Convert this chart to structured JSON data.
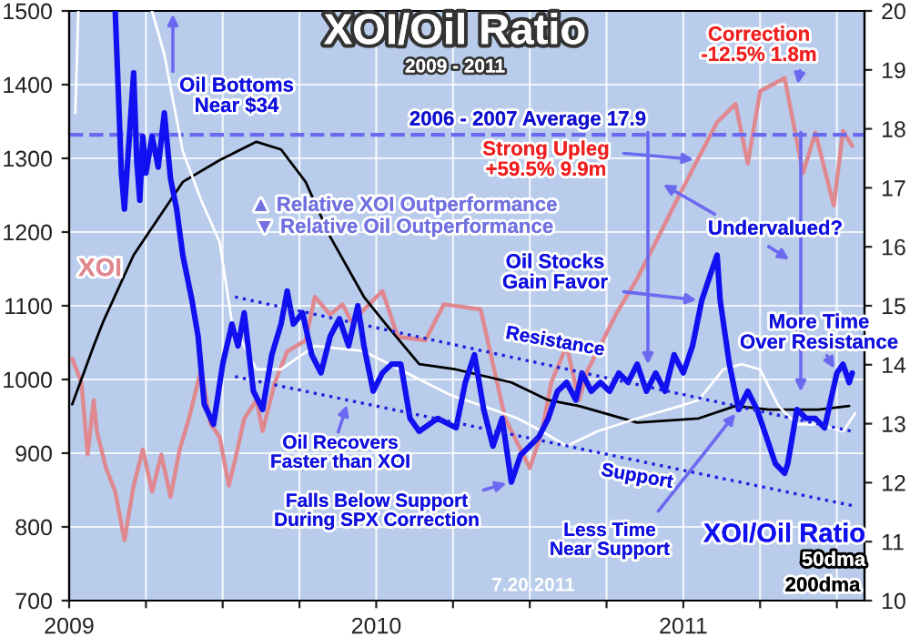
{
  "chart_data": {
    "type": "line",
    "title": "XOI/Oil Ratio",
    "subtitle": "2009 - 2011",
    "xlim": [
      2009,
      2011.59
    ],
    "xticks": [
      2009,
      {
        "value": 2009.25,
        "label": null
      },
      {
        "value": 2009.5,
        "label": null
      },
      {
        "value": 2009.75,
        "label": null
      },
      2010,
      {
        "value": 2010.25,
        "label": null
      },
      {
        "value": 2010.5,
        "label": null
      },
      {
        "value": 2010.75,
        "label": null
      },
      2011,
      {
        "value": 2011.25,
        "label": null
      },
      {
        "value": 2011.5,
        "label": null
      }
    ],
    "ylim": [
      700,
      1500
    ],
    "yticks": [
      700,
      800,
      900,
      1000,
      1100,
      1200,
      1300,
      1400,
      1500
    ],
    "y2lim": [
      10,
      20
    ],
    "y2ticks": [
      10,
      11,
      12,
      13,
      14,
      15,
      16,
      17,
      18,
      19,
      20
    ],
    "grid": true,
    "series": [
      {
        "name": "XOI",
        "color": "#e08890",
        "axis": "y",
        "x": [
          2009.01,
          2009.04,
          2009.06,
          2009.08,
          2009.09,
          2009.12,
          2009.15,
          2009.18,
          2009.21,
          2009.24,
          2009.27,
          2009.3,
          2009.33,
          2009.36,
          2009.39,
          2009.43,
          2009.46,
          2009.49,
          2009.52,
          2009.54,
          2009.57,
          2009.61,
          2009.63,
          2009.67,
          2009.71,
          2009.77,
          2009.8,
          2009.85,
          2009.89,
          2009.92,
          2010.02,
          2010.07,
          2010.16,
          2010.22,
          2010.34,
          2010.42,
          2010.5,
          2010.54,
          2010.57,
          2010.62,
          2010.66,
          2010.69,
          2010.73,
          2010.78,
          2010.85,
          2010.91,
          2010.97,
          2011.03,
          2011.07,
          2011.11,
          2011.17,
          2011.21,
          2011.25,
          2011.33,
          2011.39,
          2011.43,
          2011.49,
          2011.52,
          2011.55
        ],
        "values": [
          1028,
          996,
          898,
          972,
          930,
          880,
          848,
          782,
          856,
          905,
          848,
          898,
          841,
          905,
          947,
          1014,
          940,
          922,
          856,
          890,
          947,
          972,
          930,
          996,
          1038,
          1053,
          1112,
          1088,
          1102,
          1078,
          1120,
          1058,
          1053,
          1102,
          1095,
          947,
          880,
          930,
          996,
          1046,
          972,
          1014,
          1046,
          1088,
          1137,
          1186,
          1236,
          1285,
          1317,
          1349,
          1374,
          1293,
          1391,
          1409,
          1280,
          1335,
          1236,
          1337,
          1317
        ]
      },
      {
        "name": "200dma",
        "color": "#000000",
        "axis": "y2",
        "x": [
          2009.01,
          2009.08,
          2009.11,
          2009.21,
          2009.37,
          2009.49,
          2009.61,
          2009.69,
          2009.77,
          2009.85,
          2009.96,
          2010.04,
          2010.14,
          2010.26,
          2010.44,
          2010.56,
          2010.66,
          2010.85,
          2011.05,
          2011.17,
          2011.28,
          2011.44,
          2011.54
        ],
        "values": [
          13.33,
          14.32,
          14.72,
          15.86,
          17.1,
          17.47,
          17.78,
          17.65,
          17.1,
          16.17,
          15.15,
          14.63,
          14.01,
          13.92,
          13.7,
          13.4,
          13.3,
          13.02,
          13.09,
          13.3,
          13.24,
          13.24,
          13.3
        ]
      },
      {
        "name": "50dma",
        "color": "#ffffff",
        "axis": "y2",
        "x": [
          2009.02,
          2009.03,
          2009.15,
          2009.27,
          2009.31,
          2009.37,
          2009.43,
          2009.49,
          2009.53,
          2009.61,
          2009.69,
          2009.8,
          2009.96,
          2010.16,
          2010.24,
          2010.38,
          2010.46,
          2010.54,
          2010.62,
          2010.72,
          2010.85,
          2010.99,
          2011.05,
          2011.13,
          2011.19,
          2011.25,
          2011.31,
          2011.37,
          2011.44,
          2011.52,
          2011.56
        ],
        "values": [
          18.27,
          20.0,
          null,
          20.0,
          19.26,
          17.62,
          16.79,
          16.08,
          14.72,
          13.92,
          13.92,
          14.32,
          14.23,
          13.7,
          13.49,
          13.24,
          13.09,
          12.87,
          12.62,
          12.87,
          13.09,
          13.3,
          13.4,
          13.92,
          14.01,
          13.92,
          13.3,
          12.99,
          12.99,
          12.87,
          13.18
        ]
      },
      {
        "name": "XOI/Oil Ratio",
        "color": "#1010f0",
        "axis": "y2",
        "x": [
          2009.15,
          2009.16,
          2009.17,
          2009.18,
          2009.2,
          2009.21,
          2009.22,
          2009.23,
          2009.24,
          2009.25,
          2009.27,
          2009.29,
          2009.31,
          2009.33,
          2009.35,
          2009.37,
          2009.4,
          2009.42,
          2009.44,
          2009.47,
          2009.5,
          2009.53,
          2009.55,
          2009.57,
          2009.6,
          2009.63,
          2009.66,
          2009.69,
          2009.71,
          2009.73,
          2009.76,
          2009.79,
          2009.82,
          2009.85,
          2009.88,
          2009.91,
          2009.94,
          2009.96,
          2009.99,
          2010.02,
          2010.05,
          2010.08,
          2010.11,
          2010.14,
          2010.2,
          2010.26,
          2010.29,
          2010.32,
          2010.35,
          2010.38,
          2010.41,
          2010.44,
          2010.47,
          2010.5,
          2010.53,
          2010.56,
          2010.59,
          2010.62,
          2010.65,
          2010.67,
          2010.7,
          2010.73,
          2010.76,
          2010.79,
          2010.82,
          2010.85,
          2010.88,
          2010.91,
          2010.94,
          2010.97,
          2011.0,
          2011.03,
          2011.06,
          2011.09,
          2011.11,
          2011.12,
          2011.15,
          2011.18,
          2011.21,
          2011.24,
          2011.27,
          2011.3,
          2011.33,
          2011.34,
          2011.37,
          2011.4,
          2011.43,
          2011.46,
          2011.5,
          2011.52,
          2011.54,
          2011.55
        ],
        "values": [
          20.0,
          18.64,
          17.25,
          16.64,
          18.18,
          18.95,
          17.47,
          16.79,
          17.87,
          17.25,
          17.87,
          17.35,
          18.27,
          17.16,
          16.64,
          15.86,
          15.09,
          14.48,
          13.33,
          12.99,
          14.01,
          14.69,
          14.32,
          14.88,
          13.55,
          13.24,
          14.17,
          14.69,
          15.25,
          14.69,
          14.88,
          14.17,
          13.86,
          14.48,
          14.78,
          14.32,
          15.0,
          14.32,
          13.55,
          13.86,
          14.01,
          14.01,
          13.09,
          12.87,
          13.09,
          12.93,
          13.7,
          14.17,
          13.24,
          12.62,
          13.09,
          12.01,
          12.47,
          12.62,
          12.78,
          13.09,
          13.55,
          13.7,
          13.4,
          13.86,
          13.55,
          13.7,
          13.55,
          13.86,
          13.7,
          14.01,
          13.55,
          13.86,
          13.55,
          14.17,
          13.86,
          14.32,
          15.09,
          15.56,
          15.86,
          15.09,
          14.01,
          13.24,
          13.55,
          13.24,
          12.78,
          12.32,
          12.16,
          12.32,
          13.24,
          13.09,
          13.09,
          12.93,
          13.86,
          14.01,
          13.7,
          13.86
        ]
      },
      {
        "type": "line",
        "color": "#2020e0",
        "axis": "y2",
        "line_style": "dotted",
        "x": [
          2009.54,
          2011.55
        ],
        "values": [
          15.15,
          12.87
        ]
      },
      {
        "type": "line",
        "color": "#2020e0",
        "axis": "y2",
        "line_style": "dotted",
        "x": [
          2009.54,
          2011.56
        ],
        "values": [
          13.8,
          11.6
        ]
      }
    ],
    "ref_lines": [
      {
        "axis": "y2",
        "value": 17.9,
        "label": "2006 - 2007 Average 17.9",
        "color": "#6a6af0",
        "line_style": "dashed"
      }
    ],
    "annotations": [
      "Oil Bottoms\nNear $34",
      "▲ Relative XOI Outperformance",
      "▼ Relative Oil Outperformance",
      {
        "text": "Strong Upleg\n+59.5% 9.9m",
        "x": 2011.05,
        "y": 1298
      },
      {
        "text": "Correction\n-12.5% 1.8m",
        "x": 2011.37,
        "y": 1394
      },
      "Undervalued?",
      {
        "text": "Oil Stocks\nGain Favor",
        "x": 2011.06,
        "y": 1107
      },
      {
        "text": "More Time\nOver Resistance",
        "x": 2011.5,
        "y": 1009
      },
      "Resistance",
      "Support",
      {
        "text": "Oil Recovers\nFaster than XOI",
        "x": 2009.91,
        "y": 972
      },
      {
        "text": "Falls Below Support\nDuring SPX Correction",
        "x": 2010.44,
        "y": 861
      },
      {
        "text": "Less Time\nNear Support",
        "x": 2011.18,
        "y": 959
      },
      "7.20.2011"
    ]
  }
}
